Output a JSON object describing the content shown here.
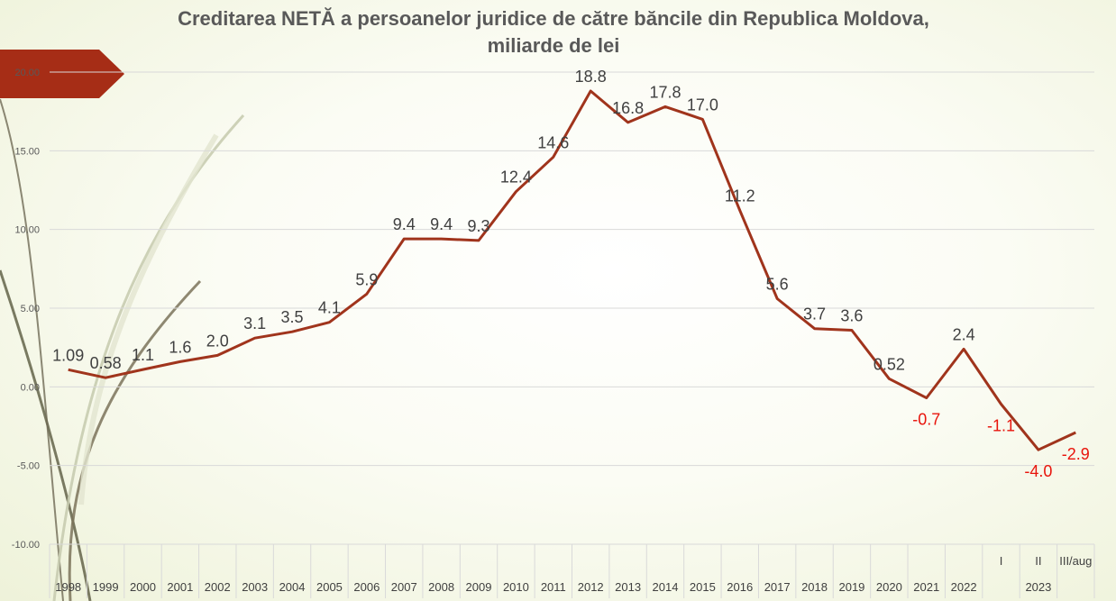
{
  "chart_data": {
    "type": "line",
    "title": "Creditarea NETĂ a persoanelor juridice de către băncile din Republica Moldova,",
    "subtitle": "miliarde de lei",
    "xlabel": "",
    "ylabel": "",
    "ylim": [
      -10,
      20
    ],
    "y_ticks": [
      "-10.00",
      "-5.00",
      "0.00",
      "5.00",
      "10.00",
      "15.00",
      "20.00"
    ],
    "y_tick_values": [
      -10,
      -5,
      0,
      5,
      10,
      15,
      20
    ],
    "grid": true,
    "legend": "none",
    "categories": [
      "1998",
      "1999",
      "2000",
      "2001",
      "2002",
      "2003",
      "2004",
      "2005",
      "2006",
      "2007",
      "2008",
      "2009",
      "2010",
      "2011",
      "2012",
      "2013",
      "2014",
      "2015",
      "2016",
      "2017",
      "2018",
      "2019",
      "2020",
      "2021",
      "2022",
      "I",
      "II",
      "III/aug"
    ],
    "x_group_label": "2023",
    "series": [
      {
        "values": [
          1.09,
          0.58,
          1.1,
          1.6,
          2.0,
          3.1,
          3.5,
          4.1,
          5.9,
          9.4,
          9.4,
          9.3,
          12.4,
          14.6,
          18.8,
          16.8,
          17.8,
          17.0,
          11.2,
          5.6,
          3.7,
          3.6,
          0.52,
          -0.7,
          2.4,
          -1.1,
          -4.0,
          -2.9
        ],
        "labels": [
          "1.09",
          "0.58",
          "1.1",
          "1.6",
          "2.0",
          "3.1",
          "3.5",
          "4.1",
          "5.9",
          "9.4",
          "9.4",
          "9.3",
          "12.4",
          "14.6",
          "18.8",
          "16.8",
          "17.8",
          "17.0",
          "11.2",
          "5.6",
          "3.7",
          "3.6",
          "0.52",
          "-0.7",
          "2.4",
          "-1.1",
          "-4.0",
          "-2.9"
        ]
      }
    ],
    "colors": {
      "line": "#a0341c",
      "positive_label": "#404040",
      "negative_label": "#e8140c",
      "tick_label": "#595959",
      "grid": "#d9d9d9",
      "accent_tab": "#a62d16"
    }
  }
}
